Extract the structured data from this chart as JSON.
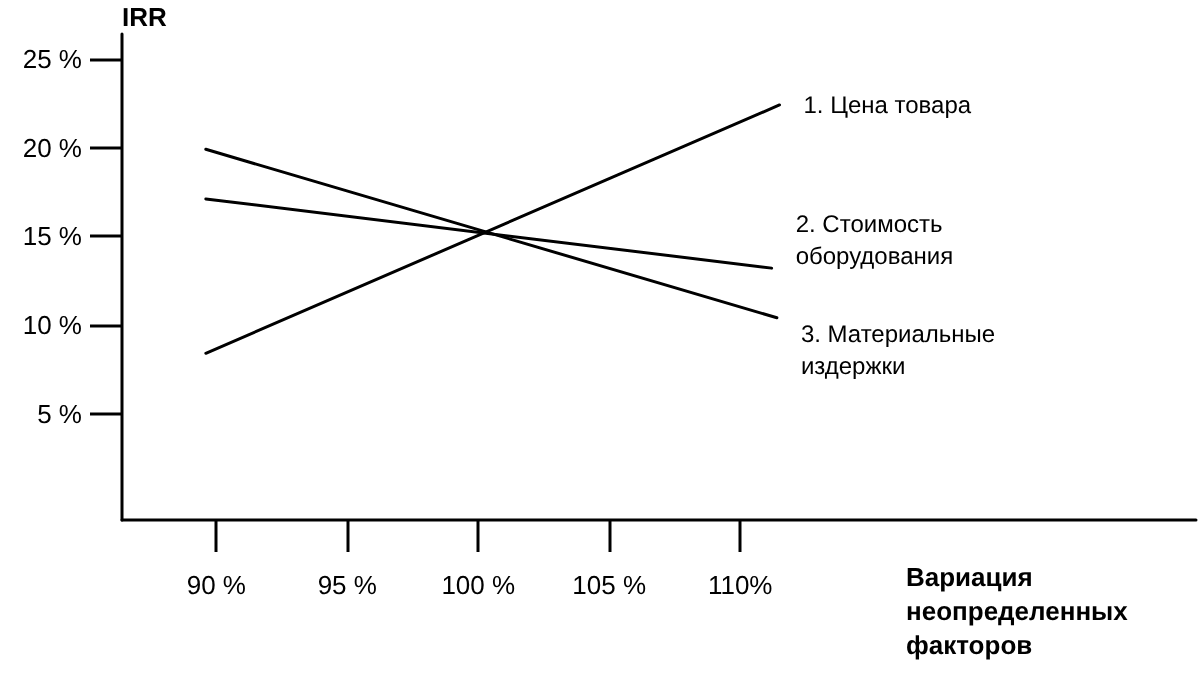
{
  "chart_data": {
    "type": "line",
    "ylabel": "IRR",
    "xlabel": "Вариация неопределенных факторов",
    "xlim": [
      86.4,
      127.4
    ],
    "ylim": [
      -1,
      26.4
    ],
    "xticks": [
      {
        "value": 90,
        "label": "90 %"
      },
      {
        "value": 95,
        "label": "95 %"
      },
      {
        "value": 100,
        "label": "100 %"
      },
      {
        "value": 105,
        "label": "105 %"
      },
      {
        "value": 110,
        "label": "110%"
      }
    ],
    "yticks": [
      {
        "value": 5,
        "label": "5 %"
      },
      {
        "value": 10,
        "label": "10 %"
      },
      {
        "value": 15,
        "label": "15 %"
      },
      {
        "value": 20,
        "label": "20 %"
      },
      {
        "value": 25,
        "label": "25 %"
      }
    ],
    "series": [
      {
        "name": "1. Цена товара",
        "color": "#000000",
        "x": [
          89.6,
          111.5
        ],
        "values": [
          8.4,
          22.4
        ]
      },
      {
        "name": "2. Стоимость оборудования",
        "color": "#000000",
        "x": [
          89.6,
          111.2
        ],
        "values": [
          17.1,
          13.2
        ]
      },
      {
        "name": "3. Материальные издержки",
        "color": "#000000",
        "x": [
          89.6,
          111.4
        ],
        "values": [
          19.9,
          10.4
        ]
      }
    ],
    "grid": false,
    "legend": false,
    "marker": "none",
    "line_style": "solid"
  }
}
